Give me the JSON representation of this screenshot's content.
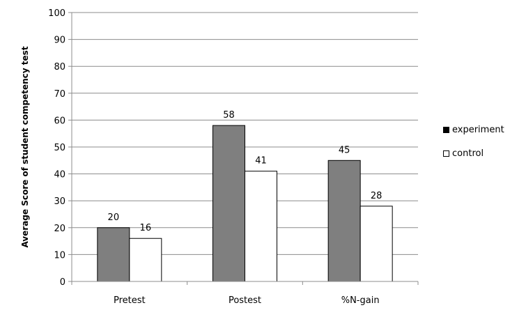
{
  "chart_data": {
    "type": "bar",
    "title": "",
    "xlabel": "",
    "ylabel": "Average Score of student competency test",
    "categories": [
      "Pretest",
      "Postest",
      "%N-gain"
    ],
    "series": [
      {
        "name": "experiment",
        "values": [
          20,
          58,
          45
        ],
        "color": "#7f7f7f"
      },
      {
        "name": "control",
        "values": [
          16,
          41,
          28
        ],
        "color": "#ffffff"
      }
    ],
    "ylim": [
      0,
      100
    ],
    "yticks": [
      0,
      10,
      20,
      30,
      40,
      50,
      60,
      70,
      80,
      90,
      100
    ],
    "grid": true,
    "legend_position": "right",
    "data_labels": true
  }
}
